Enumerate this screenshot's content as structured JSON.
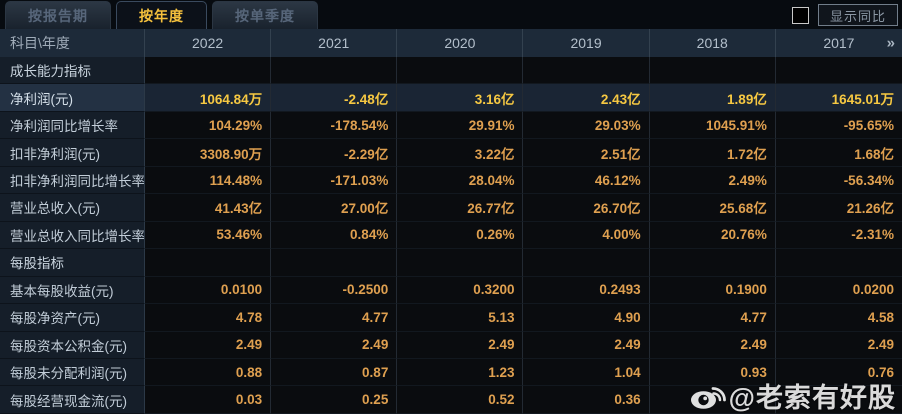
{
  "tabs": [
    {
      "label": "按报告期",
      "active": false
    },
    {
      "label": "按年度",
      "active": true
    },
    {
      "label": "按单季度",
      "active": false
    }
  ],
  "toolbar": {
    "show_yoy_label": "显示同比"
  },
  "table": {
    "corner_label": "科目\\年度",
    "years": [
      "2022",
      "2021",
      "2020",
      "2019",
      "2018",
      "2017"
    ],
    "more_icon": "»",
    "rows": [
      {
        "label": "成长能力指标",
        "type": "section",
        "values": [
          "",
          "",
          "",
          "",
          "",
          ""
        ]
      },
      {
        "label": "净利润(元)",
        "type": "highlight",
        "values": [
          "1064.84万",
          "-2.48亿",
          "3.16亿",
          "2.43亿",
          "1.89亿",
          "1645.01万"
        ]
      },
      {
        "label": "净利润同比增长率",
        "type": "normal",
        "values": [
          "104.29%",
          "-178.54%",
          "29.91%",
          "29.03%",
          "1045.91%",
          "-95.65%"
        ]
      },
      {
        "label": "扣非净利润(元)",
        "type": "normal",
        "values": [
          "3308.90万",
          "-2.29亿",
          "3.22亿",
          "2.51亿",
          "1.72亿",
          "1.68亿"
        ]
      },
      {
        "label": "扣非净利润同比增长率",
        "type": "normal",
        "values": [
          "114.48%",
          "-171.03%",
          "28.04%",
          "46.12%",
          "2.49%",
          "-56.34%"
        ]
      },
      {
        "label": "营业总收入(元)",
        "type": "normal",
        "values": [
          "41.43亿",
          "27.00亿",
          "26.77亿",
          "26.70亿",
          "25.68亿",
          "21.26亿"
        ]
      },
      {
        "label": "营业总收入同比增长率",
        "type": "normal",
        "values": [
          "53.46%",
          "0.84%",
          "0.26%",
          "4.00%",
          "20.76%",
          "-2.31%"
        ]
      },
      {
        "label": "每股指标",
        "type": "section",
        "values": [
          "",
          "",
          "",
          "",
          "",
          ""
        ]
      },
      {
        "label": "基本每股收益(元)",
        "type": "normal",
        "values": [
          "0.0100",
          "-0.2500",
          "0.3200",
          "0.2493",
          "0.1900",
          "0.0200"
        ]
      },
      {
        "label": "每股净资产(元)",
        "type": "normal",
        "values": [
          "4.78",
          "4.77",
          "5.13",
          "4.90",
          "4.77",
          "4.58"
        ]
      },
      {
        "label": "每股资本公积金(元)",
        "type": "normal",
        "values": [
          "2.49",
          "2.49",
          "2.49",
          "2.49",
          "2.49",
          "2.49"
        ]
      },
      {
        "label": "每股未分配利润(元)",
        "type": "normal",
        "values": [
          "0.88",
          "0.87",
          "1.23",
          "1.04",
          "0.93",
          "0.76"
        ]
      },
      {
        "label": "每股经营现金流(元)",
        "type": "normal",
        "values": [
          "0.03",
          "0.25",
          "0.52",
          "0.36",
          "",
          ""
        ]
      }
    ]
  },
  "watermark": {
    "handle": "@老索有好股",
    "icon": "weibo-icon"
  },
  "colors": {
    "accent_yellow": "#f5c13d",
    "value_orange": "#dfa050",
    "highlight_value_yellow": "#f6c842",
    "header_bg": "#1d2a39",
    "label_col_bg": "#151e29",
    "highlight_row_bg": "#1a2534",
    "data_cell_bg": "#0a0c0f"
  }
}
